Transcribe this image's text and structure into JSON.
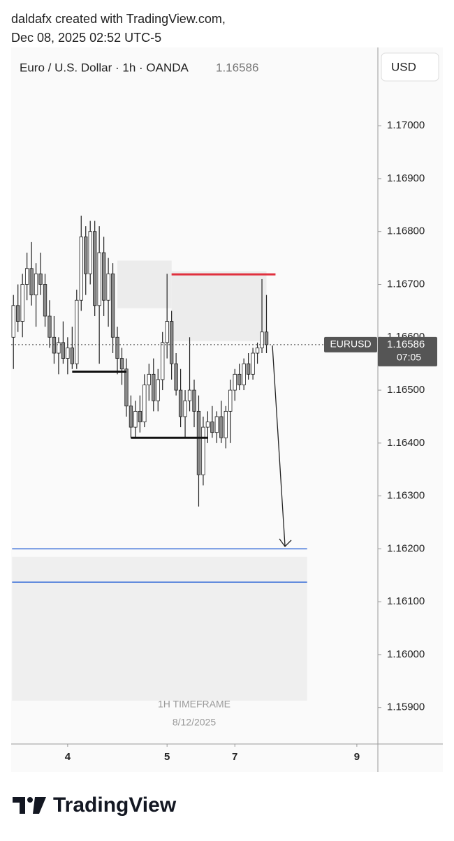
{
  "header": {
    "line1": "daldafx created with TradingView.com,",
    "line2": "Dec 08, 2025 02:52 UTC-5"
  },
  "chart_data": {
    "type": "candlestick",
    "title": "Euro / U.S. Dollar · 1h · OANDA",
    "last_price": 1.16586,
    "currency": "USD",
    "symbol": "EURUSD",
    "countdown": "07:05",
    "annotations": [
      "1H TIMEFRAME",
      "8/12/2025"
    ],
    "up_color": "#ffffff",
    "down_color": "#8a8a8a",
    "ylim": [
      1.15831,
      1.17148
    ],
    "yticks": [
      {
        "value": 1.17,
        "label": "1.17000"
      },
      {
        "value": 1.169,
        "label": "1.16900"
      },
      {
        "value": 1.168,
        "label": "1.16800"
      },
      {
        "value": 1.167,
        "label": "1.16700"
      },
      {
        "value": 1.166,
        "label": "1.16600"
      },
      {
        "value": 1.165,
        "label": "1.16500"
      },
      {
        "value": 1.164,
        "label": "1.16400"
      },
      {
        "value": 1.163,
        "label": "1.16300"
      },
      {
        "value": 1.162,
        "label": "1.16200"
      },
      {
        "value": 1.161,
        "label": "1.16100"
      },
      {
        "value": 1.16,
        "label": "1.16000"
      },
      {
        "value": 1.159,
        "label": "1.15900"
      }
    ],
    "xlim": [
      -0.5,
      80.5
    ],
    "xticks": [
      {
        "value": 12,
        "label": "4"
      },
      {
        "value": 34,
        "label": "5"
      },
      {
        "value": 49,
        "label": "7"
      },
      {
        "value": 76,
        "label": "9"
      }
    ],
    "open": [
      1.166,
      1.1666,
      1.1663,
      1.167,
      1.1673,
      1.1668,
      1.1672,
      1.167,
      1.1664,
      1.166,
      1.1657,
      1.1659,
      1.1656,
      1.1658,
      1.1655,
      1.1667,
      1.1679,
      1.1672,
      1.168,
      1.1666,
      1.1676,
      1.1667,
      1.1672,
      1.166,
      1.1656,
      1.1654,
      1.1647,
      1.1643,
      1.1646,
      1.1644,
      1.1651,
      1.1653,
      1.1648,
      1.1652,
      1.1659,
      1.1663,
      1.1655,
      1.165,
      1.1645,
      1.1648,
      1.165,
      1.1646,
      1.1634,
      1.1643,
      1.1644,
      1.1642,
      1.1645,
      1.1641,
      1.1646,
      1.165,
      1.1653,
      1.1651,
      1.1655,
      1.1653,
      1.1657,
      1.1658,
      1.1661
    ],
    "high": [
      1.1668,
      1.167,
      1.1672,
      1.1676,
      1.1678,
      1.1674,
      1.1676,
      1.1672,
      1.1667,
      1.1664,
      1.166,
      1.1663,
      1.166,
      1.1662,
      1.1669,
      1.1683,
      1.1681,
      1.1682,
      1.1682,
      1.1681,
      1.1679,
      1.1675,
      1.1674,
      1.1662,
      1.1658,
      1.1656,
      1.1649,
      1.1648,
      1.1649,
      1.1653,
      1.1655,
      1.1656,
      1.1654,
      1.1661,
      1.1672,
      1.1665,
      1.1657,
      1.1654,
      1.165,
      1.166,
      1.1652,
      1.1649,
      1.1645,
      1.1646,
      1.1647,
      1.1646,
      1.1648,
      1.1647,
      1.1652,
      1.1654,
      1.1655,
      1.1656,
      1.1657,
      1.1658,
      1.1659,
      1.1671,
      1.1668
    ],
    "low": [
      1.1654,
      1.1661,
      1.166,
      1.1667,
      1.1666,
      1.1662,
      1.1668,
      1.1662,
      1.1658,
      1.1655,
      1.1653,
      1.1655,
      1.1653,
      1.1654,
      1.1654,
      1.1665,
      1.1668,
      1.167,
      1.1664,
      1.1655,
      1.1664,
      1.1662,
      1.1657,
      1.1653,
      1.1651,
      1.1645,
      1.1641,
      1.1641,
      1.1642,
      1.1643,
      1.1648,
      1.1646,
      1.1646,
      1.165,
      1.1656,
      1.1652,
      1.1649,
      1.1643,
      1.1641,
      1.1646,
      1.1643,
      1.1628,
      1.1632,
      1.164,
      1.1641,
      1.164,
      1.164,
      1.1639,
      1.164,
      1.1648,
      1.165,
      1.165,
      1.1652,
      1.1652,
      1.1655,
      1.1657,
      1.1657
    ],
    "close": [
      1.1666,
      1.1663,
      1.167,
      1.1673,
      1.1668,
      1.1672,
      1.167,
      1.1664,
      1.166,
      1.1657,
      1.1659,
      1.1656,
      1.1658,
      1.1655,
      1.1667,
      1.1679,
      1.1672,
      1.168,
      1.1666,
      1.1676,
      1.1667,
      1.1672,
      1.166,
      1.1656,
      1.1654,
      1.1647,
      1.1643,
      1.1646,
      1.1644,
      1.1651,
      1.1653,
      1.1648,
      1.1652,
      1.1659,
      1.1663,
      1.1655,
      1.165,
      1.1645,
      1.1648,
      1.165,
      1.1646,
      1.1634,
      1.1643,
      1.1644,
      1.1642,
      1.1645,
      1.1641,
      1.1646,
      1.165,
      1.1653,
      1.1651,
      1.1655,
      1.1653,
      1.1657,
      1.1658,
      1.1661,
      1.16586
    ],
    "levels": [
      {
        "value": 1.16719,
        "start": 35,
        "end": 58,
        "color": "#e0303e",
        "width": 3
      },
      {
        "value": 1.16535,
        "start": 13,
        "end": 25,
        "color": "#111111",
        "width": 3
      },
      {
        "value": 1.1641,
        "start": 26,
        "end": 43,
        "color": "#111111",
        "width": 3
      },
      {
        "value": 1.162,
        "start": -0.3,
        "end": 65,
        "color": "#3a6fd8",
        "width": 1.5
      },
      {
        "value": 1.16137,
        "start": -0.3,
        "end": 65,
        "color": "#3a6fd8",
        "width": 1.5
      }
    ],
    "zones": [
      {
        "top": 1.16725,
        "bottom": 1.16593,
        "start": 35,
        "end": 56,
        "color": "#ececec"
      },
      {
        "top": 1.16185,
        "bottom": 1.15913,
        "start": -0.3,
        "end": 65,
        "color": "#efefef"
      },
      {
        "top": 1.16745,
        "bottom": 1.16655,
        "start": 23,
        "end": 35,
        "color": "#ececec"
      }
    ]
  },
  "footer": {
    "brand": "TradingView"
  }
}
